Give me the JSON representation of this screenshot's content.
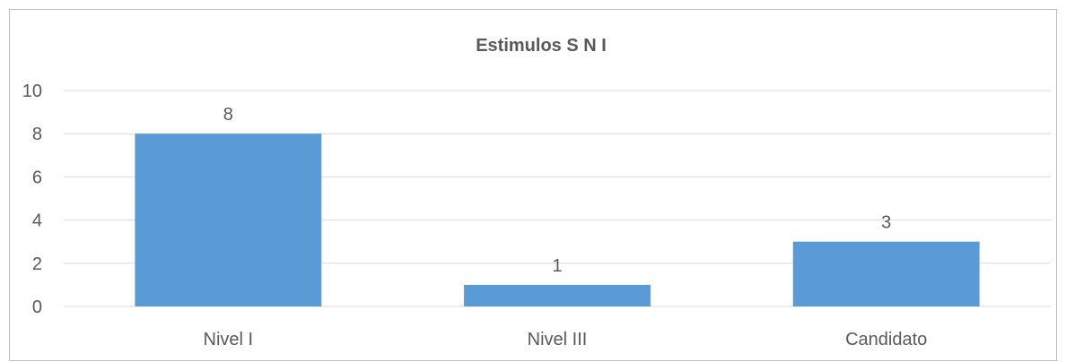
{
  "chart_data": {
    "type": "bar",
    "title": "Estimulos S N I",
    "categories": [
      "Nivel I",
      "Nivel III",
      "Candidato"
    ],
    "values": [
      8,
      1,
      3
    ],
    "data_labels": [
      "8",
      "1",
      "3"
    ],
    "yticks": [
      "0",
      "2",
      "4",
      "6",
      "8",
      "10"
    ],
    "ylim": [
      0,
      10
    ],
    "xlabel": "",
    "ylabel": "",
    "grid": true,
    "legend": "none",
    "bar_color": "#5b9bd5",
    "grid_color": "#d9d9d9",
    "text_color": "#595959"
  }
}
